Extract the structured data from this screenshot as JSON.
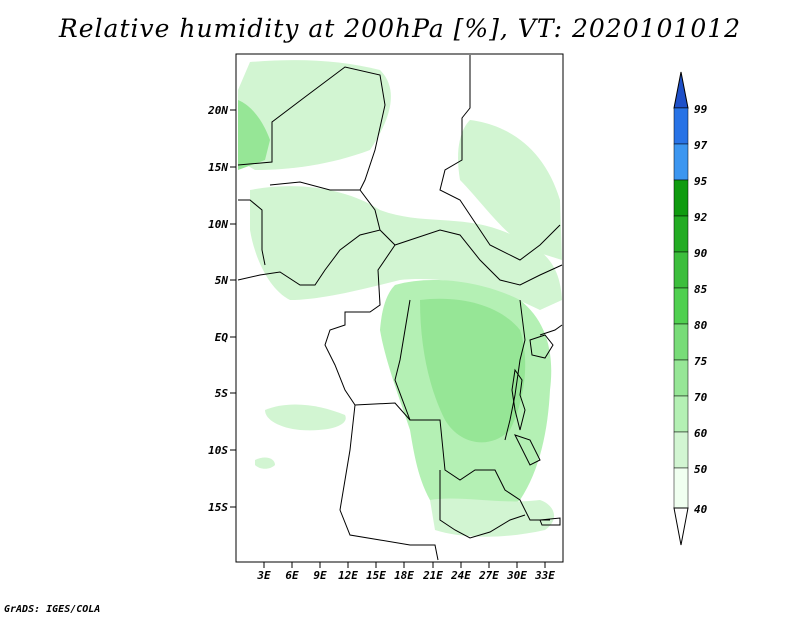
{
  "title": "Relative humidity at 200hPa [%], VT: 2020101012",
  "credit": "GrADS: IGES/COLA",
  "map": {
    "lat_ticks": [
      "20N",
      "15N",
      "10N",
      "5N",
      "EQ",
      "5S",
      "10S",
      "15S"
    ],
    "lon_ticks": [
      "3E",
      "6E",
      "9E",
      "12E",
      "15E",
      "18E",
      "21E",
      "24E",
      "27E",
      "30E",
      "33E"
    ],
    "lon_range": [
      0,
      35
    ],
    "lat_range": [
      -20,
      25
    ]
  },
  "colorbar": {
    "labels": [
      "99",
      "97",
      "95",
      "92",
      "90",
      "85",
      "80",
      "75",
      "70",
      "60",
      "50",
      "40"
    ],
    "colors": [
      "#1e50c8",
      "#2873e6",
      "#3c96f0",
      "#0f9b0f",
      "#23ac23",
      "#3cbe3c",
      "#50d050",
      "#78dc78",
      "#96e696",
      "#b4f0b4",
      "#d2f5d2",
      "#f0fff0"
    ]
  },
  "colors": {
    "land_border": "#000000",
    "humid_light": "#d2f5d2",
    "humid_mid": "#b4f0b4",
    "humid_strong": "#78dc78"
  }
}
